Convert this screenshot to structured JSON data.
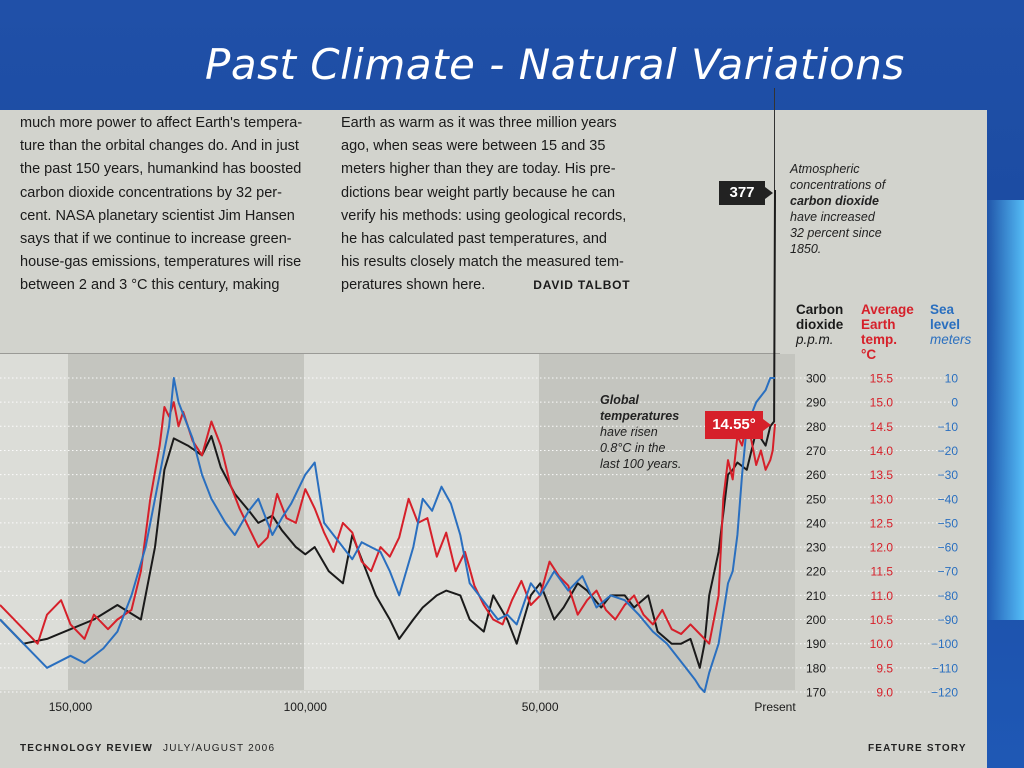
{
  "slide": {
    "title": "Past Climate - Natural Variations"
  },
  "article": {
    "col1": [
      "much more power to affect Earth's tempera-",
      "ture than the orbital changes do. And in just",
      "the past 150 years, humankind has boosted",
      "carbon dioxide concentrations by 32 per-",
      "cent. NASA planetary scientist Jim Hansen",
      "says that if we continue to increase green-",
      "house-gas emissions, temperatures will rise",
      "between 2 and 3 °C this century, making"
    ],
    "col2": [
      "Earth as warm as it was three million years",
      "ago, when seas were between 15 and 35",
      "meters higher than they are today. His pre-",
      "dictions bear weight partly because he can",
      "verify his methods: using geological records,",
      "he has calculated past temperatures, and",
      "his results closely match the measured tem-",
      "peratures shown here."
    ],
    "byline": "DAVID TALBOT"
  },
  "annotations": {
    "co2_value": "377",
    "co2_note": {
      "l1": "Atmospheric",
      "l2": "concentrations of",
      "l3": "carbon dioxide",
      "l4": "have increased",
      "l5": "32 percent since",
      "l6": "1850."
    },
    "temp_value": "14.55°",
    "temp_note": {
      "l1": "Global",
      "l2": "temperatures",
      "l3": "have risen",
      "l4": "0.8°C in the",
      "l5": "last 100 years."
    }
  },
  "legend": {
    "co2": {
      "l1": "Carbon",
      "l2": "dioxide",
      "unit": "p.p.m."
    },
    "temp": {
      "l1": "Average",
      "l2": "Earth",
      "l3": "temp.",
      "unit": "°C"
    },
    "sea": {
      "l1": "Sea",
      "l2": "level",
      "unit": "meters"
    }
  },
  "footer": {
    "left": "TECHNOLOGY REVIEW",
    "date": "JULY/AUGUST 2006",
    "right": "FEATURE STORY"
  },
  "colors": {
    "co2": "#1a1a1a",
    "temp": "#d6202a",
    "sea": "#2a6fbf"
  },
  "chart_data": {
    "type": "line",
    "x_unit": "years before present",
    "xlim": [
      165000,
      0
    ],
    "x_ticks": [
      {
        "value": 150000,
        "label": "150,000"
      },
      {
        "value": 100000,
        "label": "100,000"
      },
      {
        "value": 50000,
        "label": "50,000"
      },
      {
        "value": 0,
        "label": "Present"
      }
    ],
    "axes": {
      "co2": {
        "ticks": [
          "300",
          "290",
          "280",
          "270",
          "260",
          "250",
          "240",
          "230",
          "220",
          "210",
          "200",
          "190",
          "180",
          "170"
        ],
        "ylim": [
          170,
          300
        ]
      },
      "temp": {
        "ticks": [
          "15.5",
          "15.0",
          "14.5",
          "14.0",
          "13.5",
          "13.0",
          "12.5",
          "12.0",
          "11.5",
          "11.0",
          "10.5",
          "10.0",
          "9.5",
          "9.0"
        ],
        "ylim": [
          9.0,
          15.5
        ]
      },
      "sea": {
        "ticks": [
          "10",
          "0",
          "−10",
          "−20",
          "−30",
          "−40",
          "−50",
          "−60",
          "−70",
          "−80",
          "−90",
          "−100",
          "−110",
          "−120"
        ],
        "ylim": [
          -120,
          10
        ]
      }
    },
    "series": [
      {
        "name": "Carbon dioxide",
        "axis": "co2",
        "color": "#1a1a1a",
        "x": [
          165000,
          160000,
          155000,
          150000,
          145000,
          140000,
          135000,
          132000,
          130000,
          128000,
          125000,
          122000,
          120000,
          118000,
          115000,
          112000,
          110000,
          107000,
          105000,
          102000,
          100000,
          98000,
          95000,
          92000,
          90000,
          88000,
          85000,
          82000,
          80000,
          77000,
          75000,
          72000,
          70000,
          67000,
          65000,
          62000,
          60000,
          57000,
          55000,
          52000,
          50000,
          47000,
          45000,
          42000,
          40000,
          37000,
          35000,
          32000,
          30000,
          27000,
          25000,
          22000,
          20000,
          18000,
          16000,
          15000,
          14000,
          12000,
          10000,
          9000,
          8000,
          6000,
          4000,
          2000,
          1000,
          200,
          0
        ],
        "y": [
          200,
          190,
          192,
          196,
          200,
          206,
          200,
          230,
          262,
          275,
          272,
          268,
          276,
          263,
          252,
          245,
          240,
          243,
          237,
          230,
          227,
          230,
          220,
          215,
          235,
          225,
          210,
          200,
          192,
          200,
          205,
          210,
          212,
          210,
          200,
          195,
          210,
          200,
          190,
          210,
          215,
          200,
          205,
          215,
          212,
          205,
          210,
          210,
          205,
          210,
          195,
          190,
          190,
          192,
          180,
          190,
          210,
          228,
          260,
          262,
          265,
          262,
          278,
          272,
          280,
          282,
          377
        ]
      },
      {
        "name": "Average Earth temp.",
        "axis": "temp",
        "color": "#d6202a",
        "x": [
          165000,
          160000,
          157000,
          155000,
          152000,
          150000,
          147000,
          145000,
          142000,
          140000,
          137000,
          135000,
          133000,
          131000,
          130000,
          129000,
          128000,
          127000,
          126000,
          124000,
          122000,
          120000,
          118000,
          116000,
          114000,
          112000,
          110000,
          108000,
          106000,
          104000,
          102000,
          100000,
          98000,
          96000,
          94000,
          92000,
          90000,
          88000,
          86000,
          84000,
          82000,
          80000,
          78000,
          76000,
          74000,
          72000,
          70000,
          68000,
          66000,
          64000,
          62000,
          60000,
          58000,
          56000,
          54000,
          52000,
          50000,
          48000,
          46000,
          44000,
          42000,
          40000,
          38000,
          36000,
          34000,
          32000,
          30000,
          28000,
          26000,
          24000,
          22000,
          20000,
          18000,
          16000,
          14000,
          12000,
          11000,
          10000,
          9000,
          8000,
          7000,
          6000,
          5000,
          4000,
          3000,
          2000,
          1000,
          500,
          0
        ],
        "y": [
          10.8,
          10.3,
          10.0,
          10.6,
          10.9,
          10.4,
          10.1,
          10.6,
          10.3,
          10.5,
          10.7,
          11.5,
          13.0,
          14.1,
          14.9,
          14.7,
          15.0,
          14.5,
          14.8,
          14.2,
          13.9,
          14.6,
          14.1,
          13.3,
          12.8,
          12.4,
          12.0,
          12.2,
          13.1,
          12.6,
          12.5,
          13.2,
          12.8,
          12.3,
          11.9,
          12.5,
          12.3,
          11.7,
          11.5,
          12.0,
          11.8,
          12.2,
          13.0,
          12.5,
          12.6,
          11.8,
          12.3,
          11.5,
          11.9,
          11.2,
          10.8,
          10.5,
          10.4,
          10.9,
          11.3,
          10.8,
          11.0,
          11.7,
          11.4,
          11.2,
          10.6,
          10.9,
          11.1,
          10.7,
          10.5,
          10.8,
          11.0,
          10.6,
          10.4,
          10.7,
          10.3,
          10.2,
          10.4,
          10.2,
          10.0,
          11.0,
          13.0,
          13.8,
          13.4,
          14.3,
          14.1,
          14.6,
          14.2,
          13.7,
          14.0,
          13.6,
          13.8,
          14.0,
          14.55
        ]
      },
      {
        "name": "Sea level",
        "axis": "sea",
        "color": "#2a6fbf",
        "x": [
          165000,
          160000,
          155000,
          150000,
          147000,
          143000,
          140000,
          137000,
          134000,
          131000,
          129000,
          128000,
          127000,
          126000,
          124000,
          122000,
          120000,
          117000,
          115000,
          112000,
          110000,
          107000,
          105000,
          103000,
          100000,
          98000,
          96000,
          94000,
          92000,
          90000,
          88000,
          86000,
          84000,
          82000,
          80000,
          77000,
          75000,
          73000,
          71000,
          69000,
          67000,
          65000,
          63000,
          61000,
          59000,
          57000,
          55000,
          52000,
          50000,
          47000,
          44000,
          41000,
          38000,
          35000,
          32000,
          29000,
          26000,
          23000,
          21000,
          19000,
          17000,
          16000,
          15000,
          14000,
          12000,
          10000,
          9000,
          8000,
          7000,
          6000,
          5000,
          4000,
          2000,
          1000,
          0
        ],
        "y": [
          -90,
          -100,
          -110,
          -105,
          -108,
          -102,
          -95,
          -80,
          -60,
          -30,
          -10,
          10,
          0,
          -5,
          -15,
          -30,
          -40,
          -50,
          -55,
          -45,
          -40,
          -55,
          -48,
          -42,
          -30,
          -25,
          -50,
          -55,
          -60,
          -65,
          -58,
          -60,
          -62,
          -70,
          -80,
          -60,
          -40,
          -45,
          -35,
          -42,
          -55,
          -75,
          -80,
          -85,
          -90,
          -88,
          -92,
          -75,
          -80,
          -70,
          -78,
          -72,
          -85,
          -80,
          -82,
          -88,
          -95,
          -100,
          -105,
          -110,
          -115,
          -118,
          -120,
          -112,
          -100,
          -75,
          -70,
          -55,
          -30,
          -10,
          -5,
          0,
          5,
          10,
          10
        ]
      }
    ]
  }
}
